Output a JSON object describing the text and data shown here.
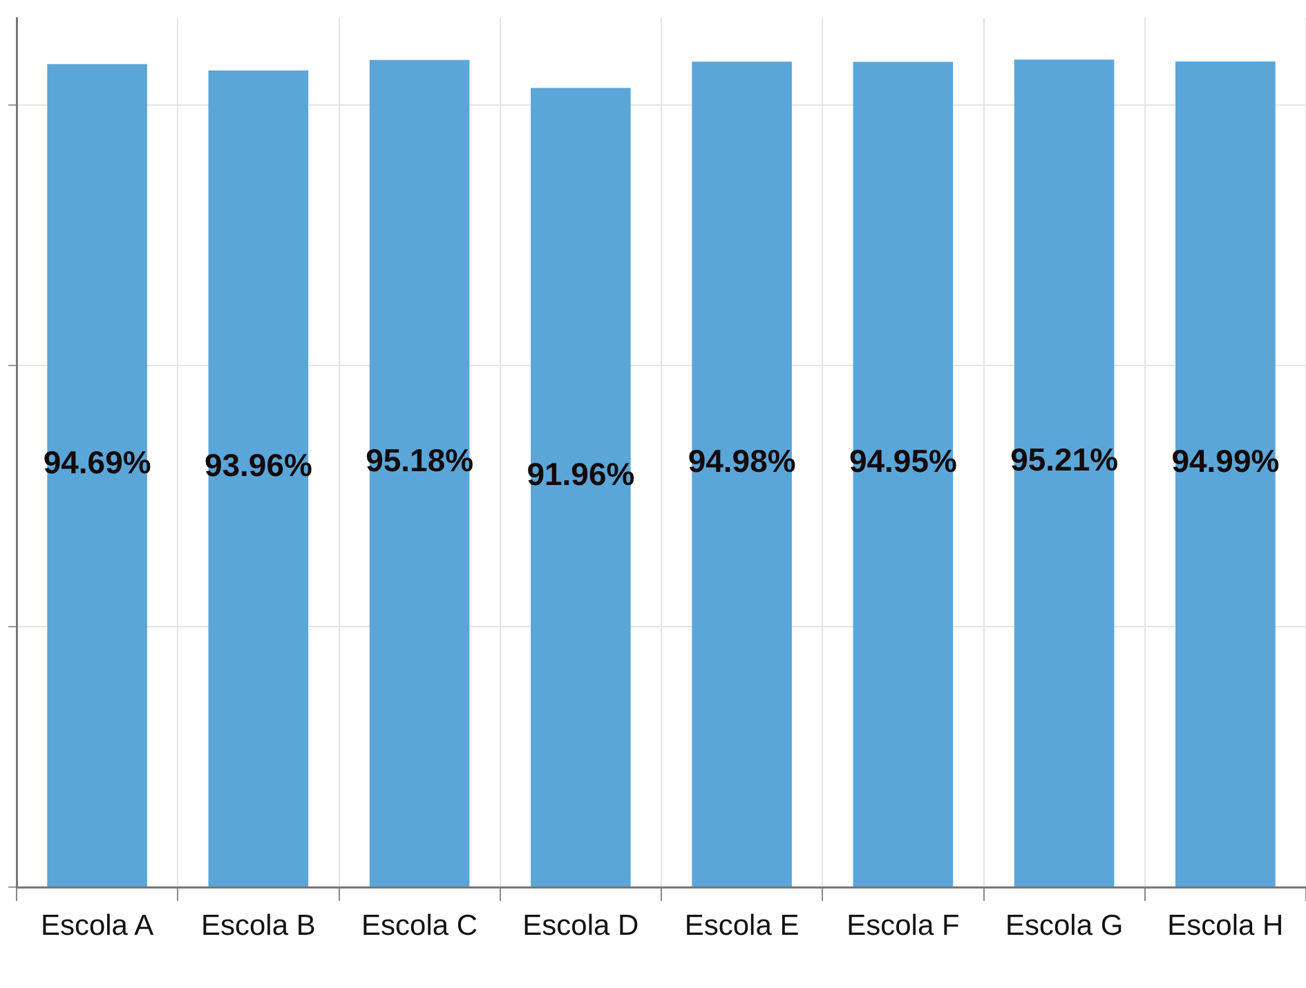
{
  "chart_data": {
    "type": "bar",
    "categories": [
      "Escola A",
      "Escola B",
      "Escola C",
      "Escola D",
      "Escola E",
      "Escola F",
      "Escola G",
      "Escola H"
    ],
    "values": [
      94.69,
      93.96,
      95.18,
      91.96,
      94.98,
      94.95,
      95.21,
      94.99
    ],
    "color": "#5ba6d8",
    "value_labels": [
      "94.69%",
      "93.96%",
      "95.18%",
      "91.96%",
      "94.98%",
      "94.95%",
      "95.21%",
      "94.99%"
    ],
    "ylim": [
      0,
      100
    ],
    "yticks": [
      {
        "value": 0,
        "label": null
      },
      {
        "value": 30,
        "label": null
      },
      {
        "value": 60,
        "label": null
      },
      {
        "value": 90,
        "label": null
      }
    ],
    "grid": true,
    "tick_labels": "x"
  }
}
